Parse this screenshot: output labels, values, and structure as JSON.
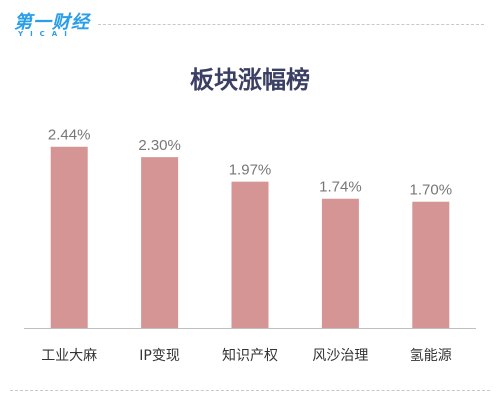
{
  "brand": {
    "logo_text": "第一财经",
    "logo_sub": "YICAI"
  },
  "chart_data": {
    "type": "bar",
    "title": "板块涨幅榜",
    "categories": [
      "工业大麻",
      "IP变现",
      "知识产权",
      "风沙治理",
      "氢能源"
    ],
    "values": [
      2.44,
      2.3,
      1.97,
      1.74,
      1.7
    ],
    "value_labels": [
      "2.44%",
      "2.30%",
      "1.97%",
      "1.74%",
      "1.70%"
    ],
    "ylim": [
      0,
      2.8
    ],
    "grid": false,
    "legend": "none",
    "colors": {
      "bar": "#d69595",
      "axis": "#bfbfbf",
      "title": "#3b3f64",
      "brand": "#2a9ee8"
    }
  }
}
